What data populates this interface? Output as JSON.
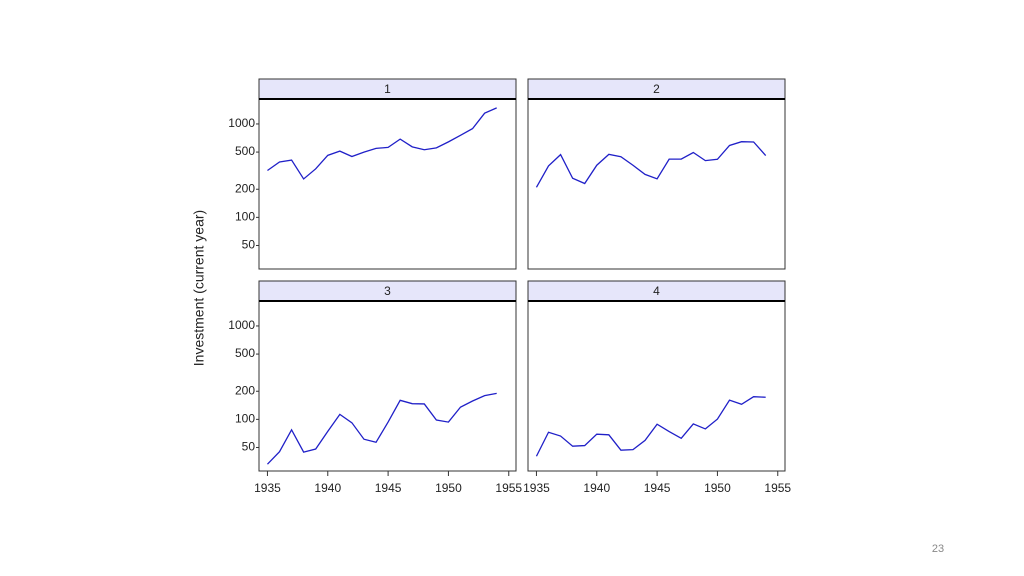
{
  "chart_data": [
    {
      "type": "line",
      "title": "1",
      "color": "#2020c8",
      "x": [
        1935,
        1936,
        1937,
        1938,
        1939,
        1940,
        1941,
        1942,
        1943,
        1944,
        1945,
        1946,
        1947,
        1948,
        1949,
        1950,
        1951,
        1952,
        1953,
        1954
      ],
      "values": [
        317.6,
        391.8,
        410.6,
        257.7,
        330.8,
        461.2,
        512,
        448,
        499.6,
        547.5,
        561.2,
        688.1,
        568.9,
        529.2,
        555.1,
        642.9,
        755.9,
        891.2,
        1304.4,
        1486.7
      ]
    },
    {
      "type": "line",
      "title": "2",
      "color": "#2020c8",
      "x": [
        1935,
        1936,
        1937,
        1938,
        1939,
        1940,
        1941,
        1942,
        1943,
        1944,
        1945,
        1946,
        1947,
        1948,
        1949,
        1950,
        1951,
        1952,
        1953,
        1954
      ],
      "values": [
        209.9,
        355.3,
        469.9,
        262.3,
        230.4,
        361.6,
        472.8,
        445.6,
        361.6,
        288.2,
        258.7,
        420.3,
        420.5,
        494.5,
        405.1,
        418.8,
        588.2,
        645.5,
        641,
        459.3
      ]
    },
    {
      "type": "line",
      "title": "3",
      "color": "#2020c8",
      "x": [
        1935,
        1936,
        1937,
        1938,
        1939,
        1940,
        1941,
        1942,
        1943,
        1944,
        1945,
        1946,
        1947,
        1948,
        1949,
        1950,
        1951,
        1952,
        1953,
        1954
      ],
      "values": [
        33.1,
        45,
        77.2,
        44.6,
        48.1,
        74.4,
        113,
        91.9,
        61.3,
        56.8,
        93.6,
        159.9,
        147.2,
        146.3,
        98.3,
        93.5,
        135.2,
        157.3,
        179.5,
        189.6
      ]
    },
    {
      "type": "line",
      "title": "4",
      "color": "#2020c8",
      "x": [
        1935,
        1936,
        1937,
        1938,
        1939,
        1940,
        1941,
        1942,
        1943,
        1944,
        1945,
        1946,
        1947,
        1948,
        1949,
        1950,
        1951,
        1952,
        1953,
        1954
      ],
      "values": [
        40.29,
        72.76,
        66.26,
        51.6,
        52.41,
        69.41,
        68.35,
        46.8,
        47.4,
        59.57,
        88.78,
        74.12,
        62.68,
        89.36,
        78.98,
        100.66,
        160.62,
        145,
        174.93,
        172.49
      ]
    }
  ],
  "ylabel": "Investment (current year)",
  "ylim": [
    28,
    1850
  ],
  "yticks": [
    50,
    100,
    200,
    500,
    1000
  ],
  "log_y": true,
  "xlim": [
    1934.3,
    1955.6
  ],
  "xticks": [
    1935,
    1940,
    1945,
    1950,
    1955
  ],
  "page_number": "23"
}
